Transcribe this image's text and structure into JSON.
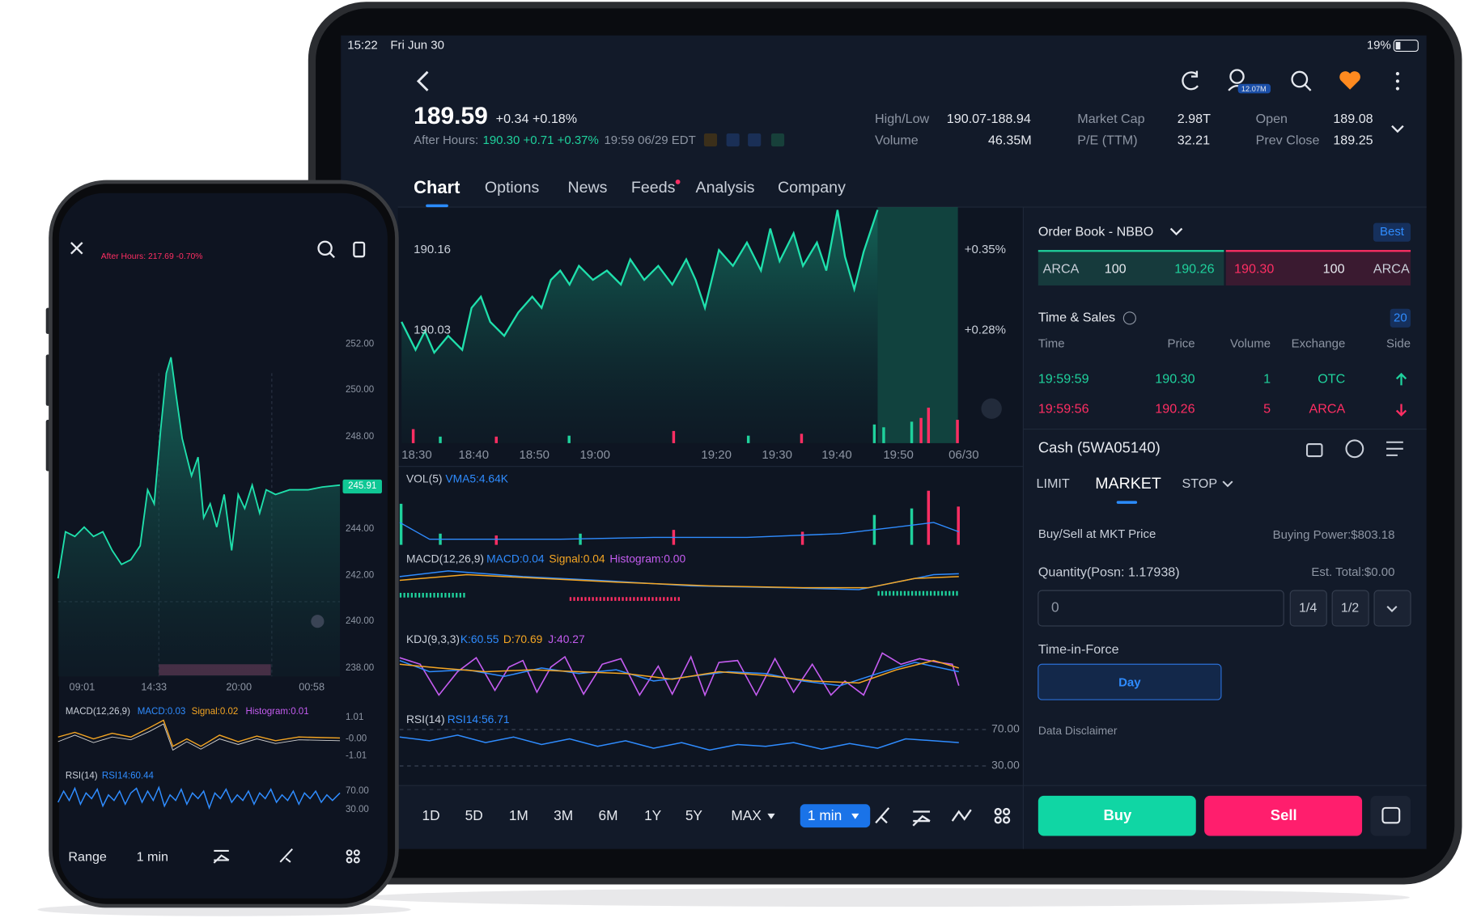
{
  "status": {
    "time": "15:22",
    "date": "Fri Jun 30",
    "battery": "19%"
  },
  "toolbar": {
    "badge": "12.07M"
  },
  "quote": {
    "price": "189.59",
    "change": "+0.34 +0.18%",
    "after_hours_label": "After Hours:",
    "after_hours_value": "190.30 +0.71 +0.37%",
    "after_hours_time": "19:59 06/29 EDT"
  },
  "stats": [
    {
      "label": "High/Low",
      "value": "190.07-188.94"
    },
    {
      "label": "Volume",
      "value": "46.35M"
    },
    {
      "label": "Market Cap",
      "value": "2.98T"
    },
    {
      "label": "P/E (TTM)",
      "value": "32.21"
    },
    {
      "label": "Open",
      "value": "189.08"
    },
    {
      "label": "Prev Close",
      "value": "189.25"
    }
  ],
  "tabs": [
    "Chart",
    "Options",
    "News",
    "Feeds",
    "Analysis",
    "Company"
  ],
  "chart": {
    "price_labels": [
      "190.16",
      "190.03"
    ],
    "percent_labels": [
      "+0.35%",
      "+0.28%"
    ],
    "x_labels": [
      "18:30",
      "18:40",
      "18:50",
      "19:00",
      "19:20",
      "19:30",
      "19:40",
      "19:50",
      "06/30"
    ]
  },
  "indicators": {
    "vol": [
      "VOL(5)",
      "VMA5:4.64K"
    ],
    "macd": [
      "MACD(12,26,9)",
      "MACD:0.04",
      "Signal:0.04",
      "Histogram:0.00"
    ],
    "kdj": [
      "KDJ(9,3,3)",
      "K:60.55",
      "D:70.69",
      "J:40.27"
    ],
    "rsi": [
      "RSI(14)",
      "RSI14:56.71"
    ],
    "rsi_levels": [
      "70.00",
      "30.00"
    ]
  },
  "periods": [
    "1D",
    "5D",
    "1M",
    "3M",
    "6M",
    "1Y",
    "5Y",
    "MAX"
  ],
  "interval": "1 min",
  "order_book": {
    "title": "Order Book - NBBO",
    "best": "Best",
    "bid": [
      "ARCA",
      "100",
      "190.26"
    ],
    "ask": [
      "190.30",
      "100",
      "ARCA"
    ]
  },
  "time_sales": {
    "title": "Time & Sales",
    "count": "20",
    "headers": [
      "Time",
      "Price",
      "Volume",
      "Exchange",
      "Side"
    ],
    "rows": [
      [
        "19:59:59",
        "190.30",
        "1",
        "OTC"
      ],
      [
        "19:59:56",
        "190.26",
        "5",
        "ARCA"
      ]
    ]
  },
  "trade": {
    "account": "Cash (5WA05140)",
    "order_types": [
      "LIMIT",
      "MARKET",
      "STOP"
    ],
    "mode": "Buy/Sell at MKT Price",
    "buying_power": "Buying Power:$803.18",
    "quantity": "Quantity(Posn: 1.17938)",
    "est_total": "Est. Total:$0.00",
    "placeholder": "0",
    "fractions": [
      "1/4",
      "1/2"
    ],
    "tif_label": "Time-in-Force",
    "tif": "Day",
    "disclaimer": "Data Disclaimer",
    "buy": "Buy",
    "sell": "Sell"
  },
  "phone": {
    "after_hours": "After Hours: 217.69 -0.70%",
    "y_labels": [
      "252.00",
      "250.00",
      "248.00",
      "244.00",
      "242.00",
      "240.00",
      "238.00"
    ],
    "current": "245.91",
    "x_labels": [
      "09:01",
      "14:33",
      "20:00",
      "00:58"
    ],
    "macd": [
      "MACD(12,26,9)",
      "MACD:0.03",
      "Signal:0.02",
      "Histogram:0.01"
    ],
    "macd_levels": [
      "1.01",
      "-0.00",
      "-1.01"
    ],
    "rsi": [
      "RSI(14)",
      "RSI14:60.44"
    ],
    "rsi_levels": [
      "70.00",
      "30.00"
    ],
    "bottom": [
      "Range",
      "1 min"
    ]
  }
}
